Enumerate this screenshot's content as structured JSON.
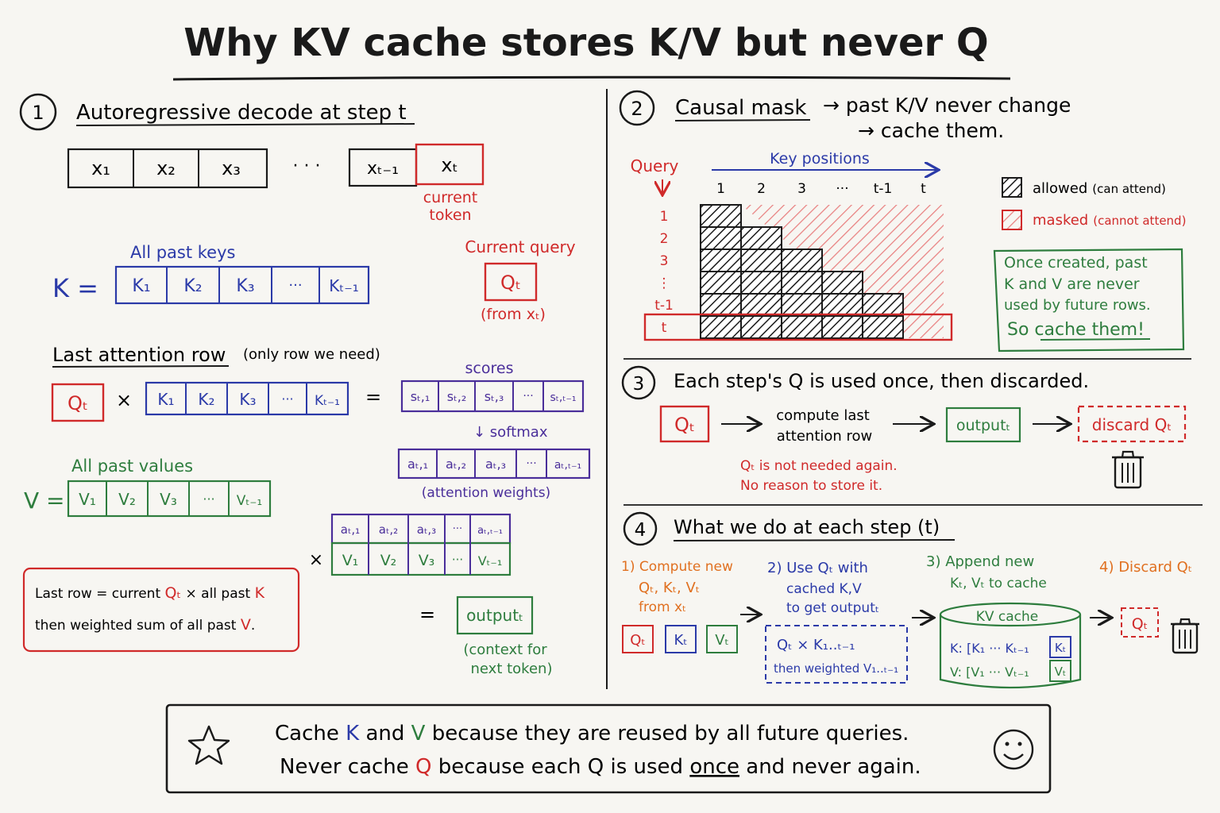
{
  "colors": {
    "ink": "#1a1a1a",
    "red": "#d02a2a",
    "blue": "#2b3aa8",
    "green": "#2e7d3e",
    "purple": "#4a2e9a",
    "orange": "#e07020",
    "paper": "#f7f6f2"
  },
  "title": "Why KV cache stores K/V but never Q",
  "s1": {
    "num": "1",
    "heading": "Autoregressive decode at step t",
    "tokens": [
      "x₁",
      "x₂",
      "x₃",
      "xₜ₋₁",
      "xₜ"
    ],
    "ellipsis": "· · ·",
    "current_token_l1": "current",
    "current_token_l2": "token",
    "all_past_keys": "All past keys",
    "k_label": "K =",
    "keys": [
      "K₁",
      "K₂",
      "K₃",
      "···",
      "Kₜ₋₁"
    ],
    "current_query": "Current query",
    "q_t": "Qₜ",
    "from_xt": "(from xₜ)",
    "last_row_title": "Last attention row",
    "last_row_note": "(only row we need)",
    "times": "×",
    "equals": "=",
    "scores_label": "scores",
    "scores": [
      "sₜ,₁",
      "sₜ,₂",
      "sₜ,₃",
      "···",
      "sₜ,ₜ₋₁"
    ],
    "softmax": "↓ softmax",
    "weights": [
      "aₜ,₁",
      "aₜ,₂",
      "aₜ,₃",
      "···",
      "aₜ,ₜ₋₁"
    ],
    "attention_weights": "(attention weights)",
    "all_past_values": "All past values",
    "v_label": "V =",
    "values": [
      "V₁",
      "V₂",
      "V₃",
      "···",
      "Vₜ₋₁"
    ],
    "note_l1_a": "Last row = current ",
    "note_l1_q": "Qₜ",
    "note_l1_b": " × all past ",
    "note_l1_k": "K",
    "note_l2_a": "then weighted sum of all past ",
    "note_l2_v": "V",
    "note_l2_b": ".",
    "output": "outputₜ",
    "context_l1": "(context for",
    "context_l2": "next token)"
  },
  "s2": {
    "num": "2",
    "heading_a": "Causal mask",
    "heading_b": "→ past K/V never change",
    "heading_c": "→ cache them.",
    "query": "Query",
    "key_positions": "Key positions",
    "cols": [
      "1",
      "2",
      "3",
      "···",
      "t-1",
      "t"
    ],
    "rows": [
      "1",
      "2",
      "3",
      "⋮",
      "t-1",
      "t"
    ],
    "legend_allowed": "allowed",
    "legend_allowed_note": "(can attend)",
    "legend_masked": "masked",
    "legend_masked_note": "(cannot attend)",
    "note_l1": "Once created, past",
    "note_l2": "K and V are never",
    "note_l3": "used by future rows.",
    "note_l4": "So cache them!"
  },
  "s3": {
    "num": "3",
    "heading": "Each step's Q is used once, then discarded.",
    "q_t": "Qₜ",
    "compute_l1": "compute last",
    "compute_l2": "attention row",
    "output": "outputₜ",
    "discard": "discard Qₜ",
    "note_l1": "Qₜ is not needed again.",
    "note_l2": "No reason to store it."
  },
  "s4": {
    "num": "4",
    "heading": "What we do at each step (t)",
    "step1_l1": "1) Compute new",
    "step1_l2": "Qₜ, Kₜ, Vₜ",
    "step1_l3": "from xₜ",
    "chips": [
      "Qₜ",
      "Kₜ",
      "Vₜ"
    ],
    "step2_l1": "2) Use Qₜ with",
    "step2_l2": "cached K,V",
    "step2_l3": "to get outputₜ",
    "step2_box_l1": "Qₜ × K₁..ₜ₋₁",
    "step2_box_l2": "then weighted V₁..ₜ₋₁",
    "step3_l1": "3) Append new",
    "step3_l2": "Kₜ, Vₜ to cache",
    "cache_title": "KV cache",
    "cache_k": "K: [K₁ ··· Kₜ₋₁",
    "cache_k_new": "Kₜ",
    "cache_v": "V: [V₁ ··· Vₜ₋₁",
    "cache_v_new": "Vₜ",
    "step4": "4) Discard Qₜ",
    "q_t": "Qₜ"
  },
  "footer": {
    "l1_a": "Cache ",
    "l1_k": "K",
    "l1_b": " and ",
    "l1_v": "V",
    "l1_c": " because they are reused by all future queries.",
    "l2_a": "Never cache ",
    "l2_q": "Q",
    "l2_b": " because each Q is used ",
    "l2_once": "once",
    "l2_c": " and never again."
  }
}
